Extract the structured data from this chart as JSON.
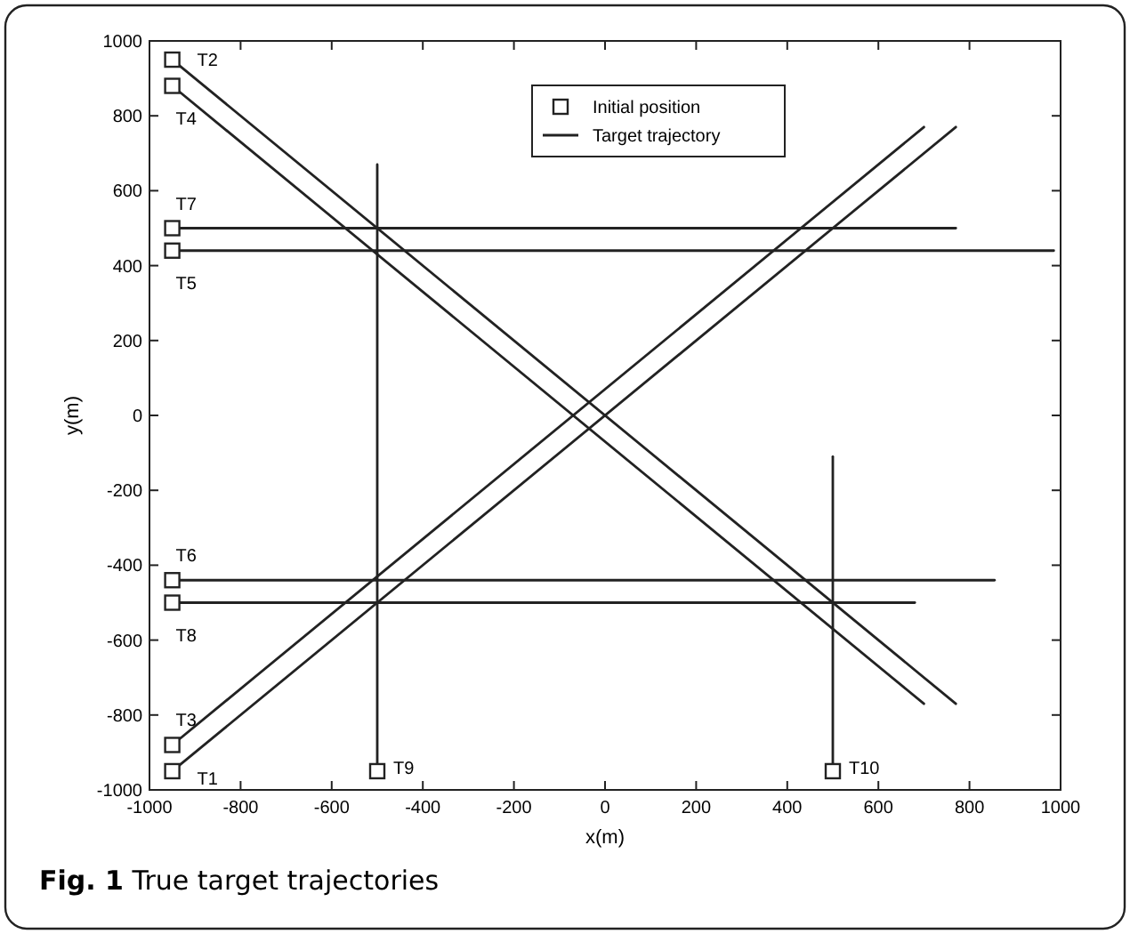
{
  "chart_data": {
    "type": "line",
    "title": "Fig. 1 True target trajectories",
    "xlabel": "x(m)",
    "ylabel": "y(m)",
    "xlim": [
      -1000,
      1000
    ],
    "ylim": [
      -1000,
      1000
    ],
    "xticks": [
      -1000,
      -800,
      -600,
      -400,
      -200,
      0,
      200,
      400,
      600,
      800,
      1000
    ],
    "yticks": [
      -1000,
      -800,
      -600,
      -400,
      -200,
      0,
      200,
      400,
      600,
      800,
      1000
    ],
    "grid": false,
    "legend": "top",
    "line_style": "solid",
    "marker": "none",
    "series": [
      {
        "name": "Initial position",
        "type": "scatter",
        "marker": "square",
        "color": "#222222",
        "x": [
          -950,
          -950,
          -950,
          -950,
          -950,
          -950,
          -950,
          -950,
          -500,
          500
        ],
        "values": [
          -950,
          950,
          -880,
          880,
          440,
          -440,
          500,
          -500,
          -950,
          -950
        ]
      },
      {
        "name": "Target trajectory",
        "color": "#222222",
        "x": [
          -950,
          770
        ],
        "values": [
          -950,
          770
        ]
      },
      {
        "color": "#222222",
        "x": [
          -950,
          770
        ],
        "values": [
          950,
          -770
        ]
      },
      {
        "color": "#222222",
        "x": [
          -950,
          700
        ],
        "values": [
          -880,
          770
        ]
      },
      {
        "color": "#222222",
        "x": [
          -950,
          700
        ],
        "values": [
          880,
          -770
        ]
      },
      {
        "color": "#222222",
        "x": [
          -950,
          985
        ],
        "values": [
          440,
          440
        ]
      },
      {
        "color": "#222222",
        "x": [
          -950,
          855
        ],
        "values": [
          -440,
          -440
        ]
      },
      {
        "color": "#222222",
        "x": [
          -950,
          770
        ],
        "values": [
          500,
          500
        ]
      },
      {
        "color": "#222222",
        "x": [
          -950,
          680
        ],
        "values": [
          -500,
          -500
        ]
      },
      {
        "color": "#222222",
        "x": [
          -500,
          -500
        ],
        "values": [
          -950,
          670
        ]
      },
      {
        "color": "#222222",
        "x": [
          500,
          500
        ],
        "values": [
          -950,
          -110
        ]
      }
    ],
    "annotations": [
      {
        "text": "T1",
        "x": -950,
        "y": -950
      },
      {
        "text": "T2",
        "x": -950,
        "y": 950
      },
      {
        "text": "T3",
        "x": -950,
        "y": -880
      },
      {
        "text": "T4",
        "x": -950,
        "y": 880
      },
      {
        "text": "T5",
        "x": -950,
        "y": 440
      },
      {
        "text": "T6",
        "x": -950,
        "y": -440
      },
      {
        "text": "T7",
        "x": -950,
        "y": 500
      },
      {
        "text": "T8",
        "x": -950,
        "y": -500
      },
      {
        "text": "T9",
        "x": -500,
        "y": -950
      },
      {
        "text": "T10",
        "x": 500,
        "y": -950
      }
    ]
  }
}
